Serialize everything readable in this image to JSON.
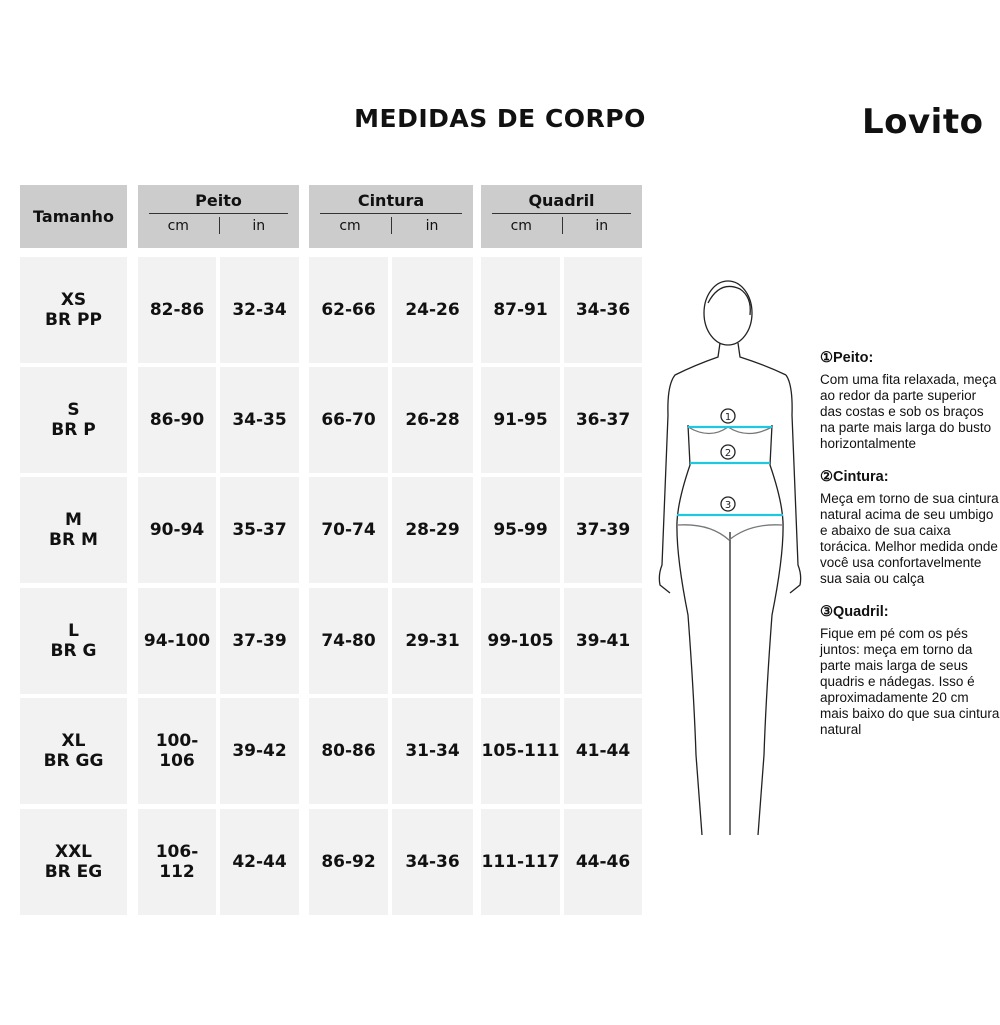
{
  "title": "MEDIDAS DE CORPO",
  "logo": "Lovito",
  "table": {
    "size_header": "Tamanho",
    "groups": [
      {
        "label": "Peito",
        "units": [
          "cm",
          "in"
        ]
      },
      {
        "label": "Cintura",
        "units": [
          "cm",
          "in"
        ]
      },
      {
        "label": "Quadril",
        "units": [
          "cm",
          "in"
        ]
      }
    ],
    "rows": [
      {
        "size": "XS",
        "br": "BR PP",
        "values": [
          "82-86",
          "32-34",
          "62-66",
          "24-26",
          "87-91",
          "34-36"
        ]
      },
      {
        "size": "S",
        "br": "BR P",
        "values": [
          "86-90",
          "34-35",
          "66-70",
          "26-28",
          "91-95",
          "36-37"
        ]
      },
      {
        "size": "M",
        "br": "BR M",
        "values": [
          "90-94",
          "35-37",
          "70-74",
          "28-29",
          "95-99",
          "37-39"
        ]
      },
      {
        "size": "L",
        "br": "BR G",
        "values": [
          "94-100",
          "37-39",
          "74-80",
          "29-31",
          "99-105",
          "39-41"
        ]
      },
      {
        "size": "XL",
        "br": "BR GG",
        "values": [
          "100-106",
          "39-42",
          "80-86",
          "31-34",
          "105-111",
          "41-44"
        ]
      },
      {
        "size": "XXL",
        "br": "BR EG",
        "values": [
          "106-112",
          "42-44",
          "86-92",
          "34-36",
          "111-117",
          "44-46"
        ]
      }
    ]
  },
  "figure": {
    "markers": [
      "1",
      "2",
      "3"
    ],
    "line_color": "#1ec8e0"
  },
  "instructions": [
    {
      "heading": "①Peito:",
      "text": "Com uma fita relaxada, meça ao redor da parte superior das costas e sob os braços na parte mais larga do busto horizontalmente"
    },
    {
      "heading": "②Cintura:",
      "text": "Meça em torno de sua cintura natural acima de seu umbigo e abaixo de sua caixa torácica. Melhor medida onde você usa confortavelmente sua saia ou calça"
    },
    {
      "heading": "③Quadril:",
      "text": "Fique em pé com os pés juntos: meça em torno da parte mais larga de seus quadris e nádegas. Isso é aproximadamente 20 cm mais baixo do que sua cintura natural"
    }
  ]
}
